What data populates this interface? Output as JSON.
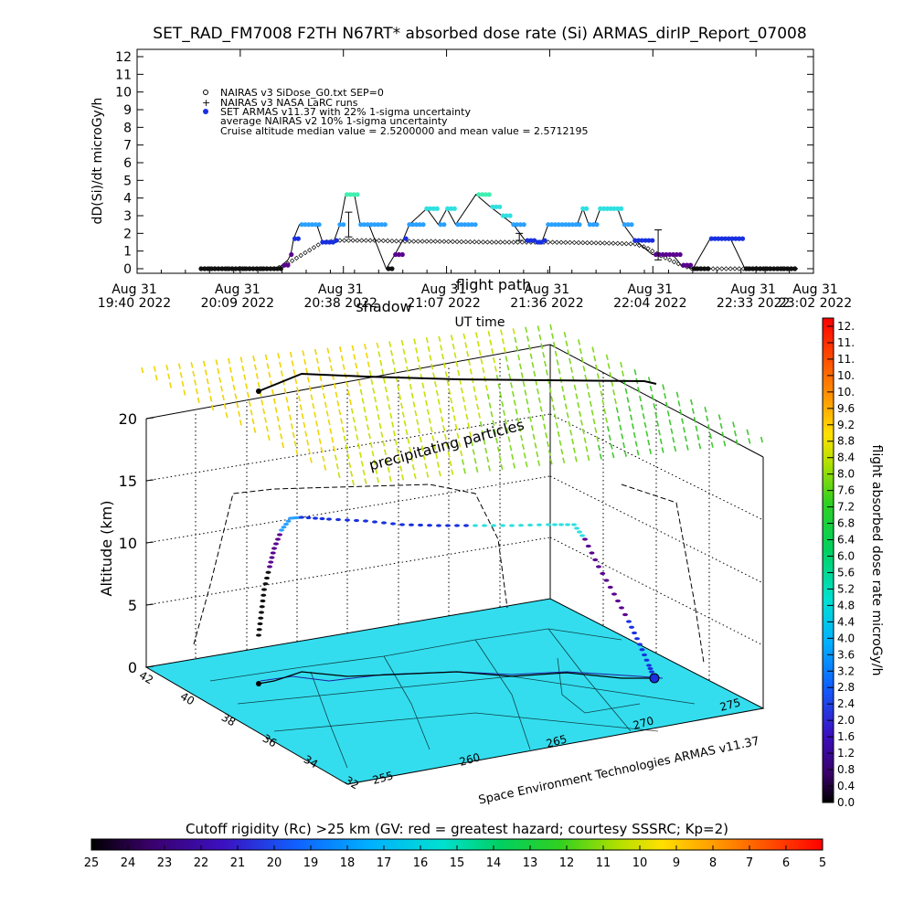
{
  "title": "SET_RAD_FM7008  F2TH N67RT* absorbed dose rate (Si) ARMAS_dirIP_Report_07008",
  "chart_data": [
    {
      "type": "line",
      "ylabel": "dD(Si)/dt microGy/h",
      "xlabel": "UT time",
      "ylim": [
        0,
        12
      ],
      "yticks": [
        "0",
        "1",
        "2",
        "3",
        "4",
        "5",
        "6",
        "7",
        "8",
        "9",
        "10",
        "11",
        "12"
      ],
      "xticks": [
        {
          "top": "Aug 31",
          "bottom": "19:40 2022"
        },
        {
          "top": "Aug 31",
          "bottom": "20:09 2022"
        },
        {
          "top": "Aug 31",
          "bottom": "20:38 2022"
        },
        {
          "top": "Aug 31",
          "bottom": "21:07 2022"
        },
        {
          "top": "Aug 31",
          "bottom": "21:36 2022"
        },
        {
          "top": "Aug 31",
          "bottom": "22:04 2022"
        },
        {
          "top": "Aug 31",
          "bottom": "22:33 2022"
        },
        {
          "top": "Aug 31",
          "bottom": "23:02 2022"
        }
      ],
      "annotations": [
        "shadow",
        "flight path"
      ],
      "legend": [
        "NAIRAS v3 SiDose_G0.txt SEP=0",
        "NAIRAS v3 NASA LaRC runs",
        "SET ARMAS v11.37 with 22% 1-sigma uncertainty",
        "average NAIRAS v2 10% 1-sigma uncertainty",
        "Cruise altitude median value = 2.5200000 and mean value = 2.5712195"
      ],
      "series": [
        {
          "name": "SET ARMAS v11.37 with 22% 1-sigma uncertainty",
          "x_minutes": [
            0,
            26,
            28,
            30,
            31,
            32,
            34,
            40,
            42,
            46,
            48,
            50,
            53,
            55,
            58,
            64,
            67,
            70,
            72,
            78,
            82,
            85,
            88,
            95,
            100,
            104,
            108,
            112,
            114,
            116,
            118,
            120,
            125,
            130,
            132,
            134,
            136,
            138,
            140,
            142,
            144,
            146,
            150,
            156,
            160,
            163,
            166,
            170,
            176,
            180,
            183,
            188,
            190,
            192,
            200,
            204,
            206
          ],
          "y": [
            0,
            0,
            0.2,
            0.5,
            0.8,
            1.7,
            2.5,
            2.5,
            1.5,
            1.6,
            2.5,
            4.2,
            4.2,
            2.5,
            2.5,
            0,
            0.8,
            1.7,
            2.5,
            3.4,
            2.5,
            3.4,
            2.5,
            4.2,
            3.5,
            3.0,
            2.5,
            1.6,
            1.6,
            1.5,
            1.6,
            2.5,
            2.5,
            2.5,
            3.4,
            2.5,
            2.5,
            3.4,
            3.4,
            3.4,
            3.4,
            2.5,
            1.6,
            0.8,
            0.8,
            0.8,
            0.2,
            0,
            1.7,
            1.7,
            1.7,
            0,
            0,
            0,
            0,
            0,
            0
          ]
        },
        {
          "name": "NAIRAS v3 SiDose_G0.txt SEP=0",
          "x_minutes": [
            0,
            26,
            30,
            36,
            42,
            48,
            54,
            60,
            70,
            80,
            100,
            120,
            140,
            150,
            154,
            158,
            162,
            166,
            170,
            176,
            180,
            190,
            206
          ],
          "y": [
            0,
            0,
            0.3,
            0.9,
            1.5,
            1.6,
            1.6,
            1.6,
            1.55,
            1.55,
            1.5,
            1.5,
            1.45,
            1.4,
            1.2,
            0.8,
            0.5,
            0.2,
            0,
            0,
            0,
            0,
            0
          ]
        }
      ],
      "error_bars": [
        {
          "x_minutes": 51,
          "low": 1.8,
          "high": 3.2
        },
        {
          "x_minutes": 110,
          "low": 1.6,
          "high": 2.0
        },
        {
          "x_minutes": 158,
          "low": 0.5,
          "high": 2.2
        }
      ]
    },
    {
      "type": "scatter",
      "zlabel": "Altitude (km)",
      "zticks": [
        "0",
        "5",
        "10",
        "15",
        "20"
      ],
      "lat_ticks": [
        "32",
        "34",
        "36",
        "38",
        "40",
        "42"
      ],
      "lon_ticks": [
        "255",
        "260",
        "265",
        "270",
        "275"
      ],
      "annotations": [
        "precipitating particles"
      ],
      "credit": "Space Environment Technologies ARMAS v11.37",
      "flight_track_altitude_km": [
        0.5,
        3,
        6,
        9,
        11.5,
        12,
        12,
        11.8,
        11.7,
        11.5,
        11.5,
        11.5,
        8,
        5,
        2,
        0.5
      ]
    }
  ],
  "colorbar": {
    "label": "flight absorbed dose rate microGy/h",
    "ticks": [
      "0.0",
      "0.4",
      "0.8",
      "1.2",
      "1.6",
      "2.0",
      "2.4",
      "2.8",
      "3.2",
      "3.6",
      "4.0",
      "4.4",
      "4.8",
      "5.2",
      "5.6",
      "6.0",
      "6.4",
      "6.8",
      "7.2",
      "7.6",
      "8.0",
      "8.4",
      "8.8",
      "9.2",
      "9.6",
      "10.",
      "10.",
      "11.",
      "11.",
      "12."
    ]
  },
  "rigidity_bar": {
    "label": "Cutoff rigidity (Rc) >25 km (GV: red = greatest hazard; courtesy SSSRC; Kp=2)",
    "ticks": [
      "25",
      "24",
      "23",
      "22",
      "21",
      "20",
      "19",
      "18",
      "17",
      "16",
      "15",
      "14",
      "13",
      "12",
      "11",
      "10",
      "9",
      "8",
      "7",
      "6",
      "5"
    ]
  },
  "colors": {
    "purple": "#5a0090",
    "blue": "#1830e0",
    "lightblue": "#2aa0ff",
    "cyan": "#30e0e0",
    "aqua": "#40f0c0",
    "green": "#30c030",
    "surface": "#33ddee",
    "black": "#000000"
  }
}
